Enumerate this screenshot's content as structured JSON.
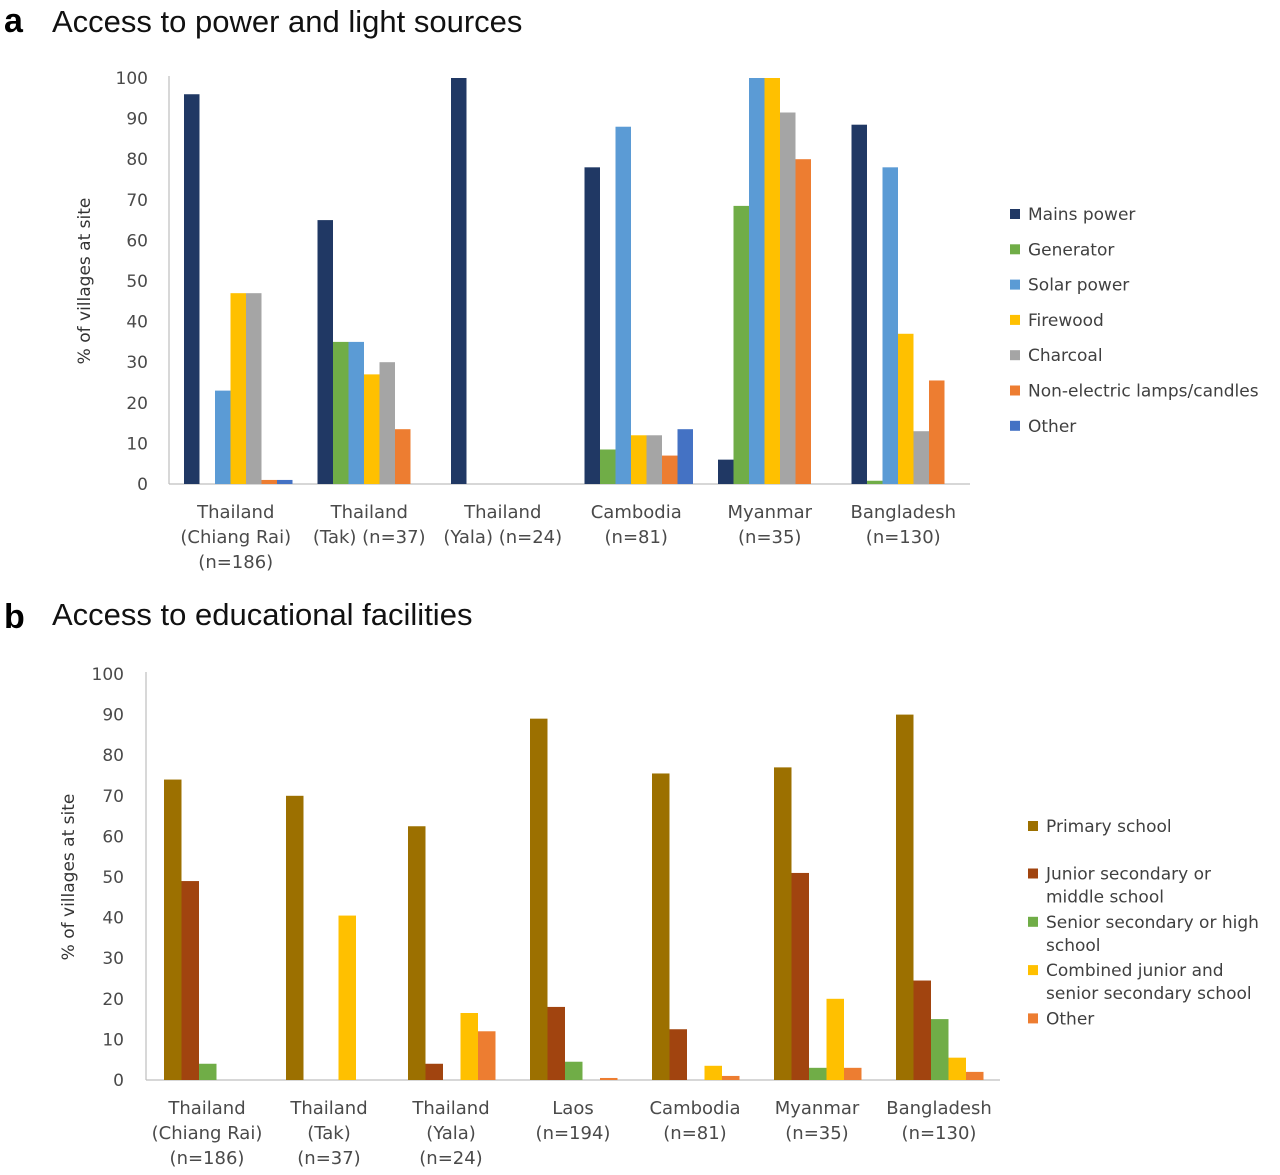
{
  "chart_data": [
    {
      "type": "bar",
      "panel": "a",
      "title": "Access to power and light sources",
      "ylabel": "% of villages at site",
      "xlabel": "",
      "ylim": [
        0,
        100
      ],
      "yticks": [
        0,
        10,
        20,
        30,
        40,
        50,
        60,
        70,
        80,
        90,
        100
      ],
      "grid": false,
      "legend": "right",
      "categories": [
        [
          "Thailand",
          "(Chiang Rai)",
          "(n=186)"
        ],
        [
          "Thailand",
          "(Tak) (n=37)"
        ],
        [
          "Thailand",
          "(Yala) (n=24)"
        ],
        [
          "Cambodia",
          "(n=81)"
        ],
        [
          "Myanmar",
          "(n=35)"
        ],
        [
          "Bangladesh",
          "(n=130)"
        ]
      ],
      "series": [
        {
          "name": "Mains power",
          "color": "#203864",
          "values": [
            96,
            65,
            100,
            78,
            6,
            88.5
          ]
        },
        {
          "name": "Generator",
          "color": "#70ad47",
          "values": [
            0,
            35,
            0,
            8.5,
            68.5,
            0.8
          ]
        },
        {
          "name": "Solar power",
          "color": "#5b9bd5",
          "values": [
            23,
            35,
            0,
            88,
            100,
            78
          ]
        },
        {
          "name": "Firewood",
          "color": "#ffc000",
          "values": [
            47,
            27,
            0,
            12,
            100,
            37
          ]
        },
        {
          "name": "Charcoal",
          "color": "#a5a5a5",
          "values": [
            47,
            30,
            0,
            12,
            91.5,
            13
          ]
        },
        {
          "name": "Non-electric lamps/candles",
          "color": "#ed7d31",
          "values": [
            1,
            13.5,
            0,
            7,
            80,
            25.5
          ]
        },
        {
          "name": "Other",
          "color": "#4472c4",
          "values": [
            1,
            0,
            0,
            13.5,
            0,
            0
          ]
        }
      ]
    },
    {
      "type": "bar",
      "panel": "b",
      "title": "Access to educational facilities",
      "ylabel": "% of villages at site",
      "xlabel": "",
      "ylim": [
        0,
        100
      ],
      "yticks": [
        0,
        10,
        20,
        30,
        40,
        50,
        60,
        70,
        80,
        90,
        100
      ],
      "grid": false,
      "legend": "right",
      "categories": [
        [
          "Thailand",
          "(Chiang Rai)",
          "(n=186)"
        ],
        [
          "Thailand",
          "(Tak)",
          "(n=37)"
        ],
        [
          "Thailand",
          "(Yala)",
          "(n=24)"
        ],
        [
          "Laos",
          "(n=194)"
        ],
        [
          "Cambodia",
          "(n=81)"
        ],
        [
          "Myanmar",
          "(n=35)"
        ],
        [
          "Bangladesh",
          "(n=130)"
        ]
      ],
      "series": [
        {
          "name": [
            "Primary school"
          ],
          "color": "#9c7000",
          "values": [
            74,
            70,
            62.5,
            89,
            75.5,
            77,
            90
          ]
        },
        {
          "name": [
            "Junior secondary or",
            "middle school"
          ],
          "color": "#a1440f",
          "values": [
            49,
            0,
            4,
            18,
            12.5,
            51,
            24.5
          ]
        },
        {
          "name": [
            "Senior secondary or high",
            "school"
          ],
          "color": "#70ad47",
          "values": [
            4,
            0,
            0,
            4.5,
            0,
            3,
            15
          ]
        },
        {
          "name": [
            "Combined junior and",
            "senior secondary school"
          ],
          "color": "#ffc000",
          "values": [
            0,
            40.5,
            16.5,
            0,
            3.5,
            20,
            5.5
          ]
        },
        {
          "name": [
            "Other"
          ],
          "color": "#ed7d31",
          "values": [
            0,
            0,
            12,
            0.5,
            1,
            3,
            2
          ]
        }
      ]
    }
  ]
}
